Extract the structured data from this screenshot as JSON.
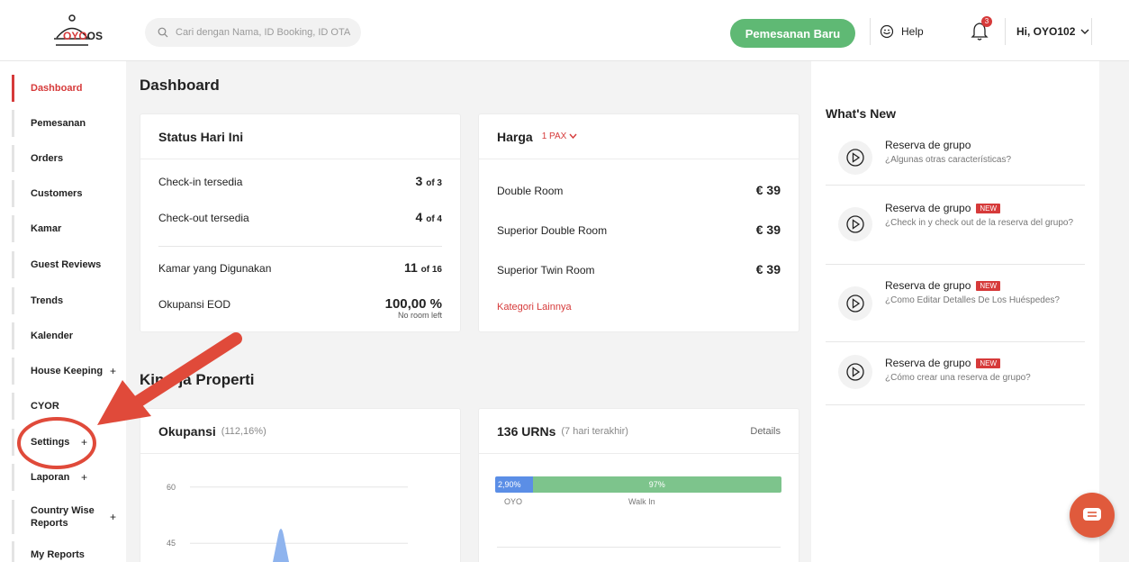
{
  "header": {
    "logo_text": "OYO",
    "logo_suffix": "OS",
    "search_placeholder": "Cari dengan Nama, ID Booking, ID OTA",
    "new_booking_label": "Pemesanan Baru",
    "help_label": "Help",
    "notification_count": "3",
    "user_label": "Hi, OYO102"
  },
  "sidebar": {
    "items": [
      {
        "label": "Dashboard",
        "active": true
      },
      {
        "label": "Pemesanan"
      },
      {
        "label": "Orders"
      },
      {
        "label": "Customers"
      },
      {
        "label": "Kamar"
      },
      {
        "label": "Guest Reviews"
      },
      {
        "label": "Trends"
      },
      {
        "label": "Kalender"
      },
      {
        "label": "House Keeping",
        "expand": "+"
      },
      {
        "label": "CYOR"
      },
      {
        "label": "Settings",
        "expand": "+"
      },
      {
        "label": "Laporan",
        "expand": "+"
      },
      {
        "label": "Country Wise Reports",
        "expand": "+"
      },
      {
        "label": "My Reports"
      }
    ]
  },
  "main": {
    "title": "Dashboard",
    "status_card": {
      "title": "Status Hari Ini",
      "rows": [
        {
          "label": "Check-in tersedia",
          "value": "3",
          "suffix": "of 3"
        },
        {
          "label": "Check-out tersedia",
          "value": "4",
          "suffix": "of 4"
        },
        {
          "label": "Kamar yang Digunakan",
          "value": "11",
          "suffix": "of 16"
        },
        {
          "label": "Okupansi EOD",
          "value": "100,00 %",
          "note": "No room left"
        }
      ]
    },
    "price_card": {
      "title": "Harga",
      "pax_label": "1 PAX",
      "rows": [
        {
          "label": "Double Room",
          "value": "€ 39"
        },
        {
          "label": "Superior Double Room",
          "value": "€ 39"
        },
        {
          "label": "Superior Twin Room",
          "value": "€ 39"
        }
      ],
      "more_link": "Kategori Lainnya"
    },
    "section_title": "Kinerja Properti",
    "occupancy_card": {
      "title": "Okupansi",
      "subtitle": "(112,16%)"
    },
    "urn_card": {
      "title": "136 URNs",
      "subtitle": "(7 hari terakhir)",
      "details_link": "Details"
    }
  },
  "chart_data": [
    {
      "type": "line",
      "yticks": [
        60,
        45
      ],
      "ylim": [
        40,
        65
      ]
    },
    {
      "type": "bar",
      "orientation": "stacked-horizontal",
      "categories": [
        "OYO",
        "Walk In"
      ],
      "values": [
        2.9,
        97
      ],
      "value_labels": [
        "2,90%",
        "97%"
      ]
    }
  ],
  "whats_new": {
    "title": "What's New",
    "new_badge": "NEW",
    "items": [
      {
        "title": "Reserva de grupo",
        "desc": "¿Algunas otras características?",
        "is_new": false
      },
      {
        "title": "Reserva de grupo",
        "desc": "¿Check in y check out de la reserva del grupo?",
        "is_new": true
      },
      {
        "title": "Reserva de grupo",
        "desc": "¿Como Editar Detalles De Los Huéspedes?",
        "is_new": true
      },
      {
        "title": "Reserva de grupo",
        "desc": "¿Cómo crear una reserva de grupo?",
        "is_new": true
      }
    ]
  },
  "colors": {
    "brand_red": "#d63a3a",
    "primary_green": "#5fb974",
    "oyo_blue": "#5b8ee6",
    "walkin_green": "#7dc48c",
    "annotation_red": "#e04a3a"
  }
}
